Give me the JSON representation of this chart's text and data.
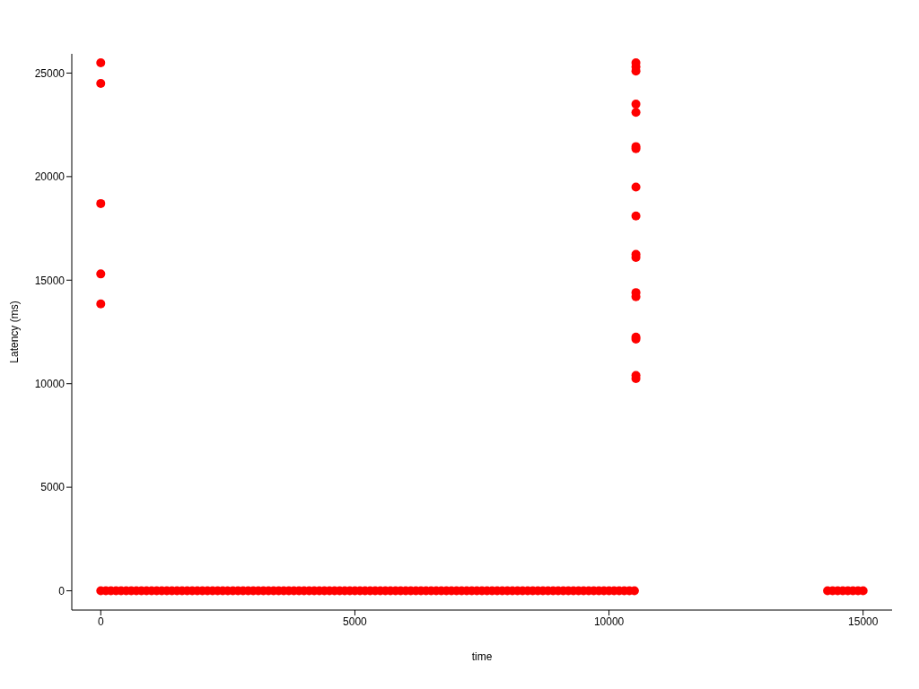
{
  "chart_data": {
    "type": "scatter",
    "xlabel": "time",
    "ylabel": "Latency (ms)",
    "xlim": [
      -570,
      15570
    ],
    "xticks": [
      0,
      5000,
      10000,
      15000
    ],
    "ylim": [
      -930,
      25930
    ],
    "yticks": [
      0,
      5000,
      10000,
      15000,
      20000,
      25000
    ],
    "grid": false,
    "marker": "circle",
    "legend": false,
    "series": [
      {
        "color": "#ff0000",
        "x": [
          0,
          100,
          200,
          300,
          400,
          500,
          600,
          700,
          800,
          900,
          1000,
          1100,
          1200,
          1300,
          1400,
          1500,
          1600,
          1700,
          1800,
          1900,
          2000,
          2100,
          2200,
          2300,
          2400,
          2500,
          2600,
          2700,
          2800,
          2900,
          3000,
          3100,
          3200,
          3300,
          3400,
          3500,
          3600,
          3700,
          3800,
          3900,
          4000,
          4100,
          4200,
          4300,
          4400,
          4500,
          4600,
          4700,
          4800,
          4900,
          5000,
          5100,
          5200,
          5300,
          5400,
          5500,
          5600,
          5700,
          5800,
          5900,
          6000,
          6100,
          6200,
          6300,
          6400,
          6500,
          6600,
          6700,
          6800,
          6900,
          7000,
          7100,
          7200,
          7300,
          7400,
          7500,
          7600,
          7700,
          7800,
          7900,
          8000,
          8100,
          8200,
          8300,
          8400,
          8500,
          8600,
          8700,
          8800,
          8900,
          9000,
          9100,
          9200,
          9300,
          9400,
          9500,
          9600,
          9700,
          9800,
          9900,
          10000,
          10100,
          10200,
          10300,
          10400,
          10500,
          14300,
          14400,
          14500,
          14600,
          14700,
          14800,
          14900,
          15000,
          0,
          0,
          0,
          0,
          0,
          10530,
          10530,
          10530,
          10530,
          10530,
          10530,
          10530,
          10530,
          10530,
          10530,
          10530,
          10530,
          10530,
          10530,
          10530,
          10530,
          10530
        ],
        "values": [
          0,
          0,
          0,
          0,
          0,
          0,
          0,
          0,
          0,
          0,
          0,
          0,
          0,
          0,
          0,
          0,
          0,
          0,
          0,
          0,
          0,
          0,
          0,
          0,
          0,
          0,
          0,
          0,
          0,
          0,
          0,
          0,
          0,
          0,
          0,
          0,
          0,
          0,
          0,
          0,
          0,
          0,
          0,
          0,
          0,
          0,
          0,
          0,
          0,
          0,
          0,
          0,
          0,
          0,
          0,
          0,
          0,
          0,
          0,
          0,
          0,
          0,
          0,
          0,
          0,
          0,
          0,
          0,
          0,
          0,
          0,
          0,
          0,
          0,
          0,
          0,
          0,
          0,
          0,
          0,
          0,
          0,
          0,
          0,
          0,
          0,
          0,
          0,
          0,
          0,
          0,
          0,
          0,
          0,
          0,
          0,
          0,
          0,
          0,
          0,
          0,
          0,
          0,
          0,
          0,
          0,
          0,
          0,
          0,
          0,
          0,
          0,
          0,
          0,
          25500,
          24500,
          18700,
          15300,
          13850,
          25500,
          25300,
          25100,
          23500,
          23100,
          21450,
          21350,
          19500,
          18100,
          16250,
          16100,
          14400,
          14200,
          12250,
          12150,
          10400,
          10250
        ]
      }
    ]
  }
}
